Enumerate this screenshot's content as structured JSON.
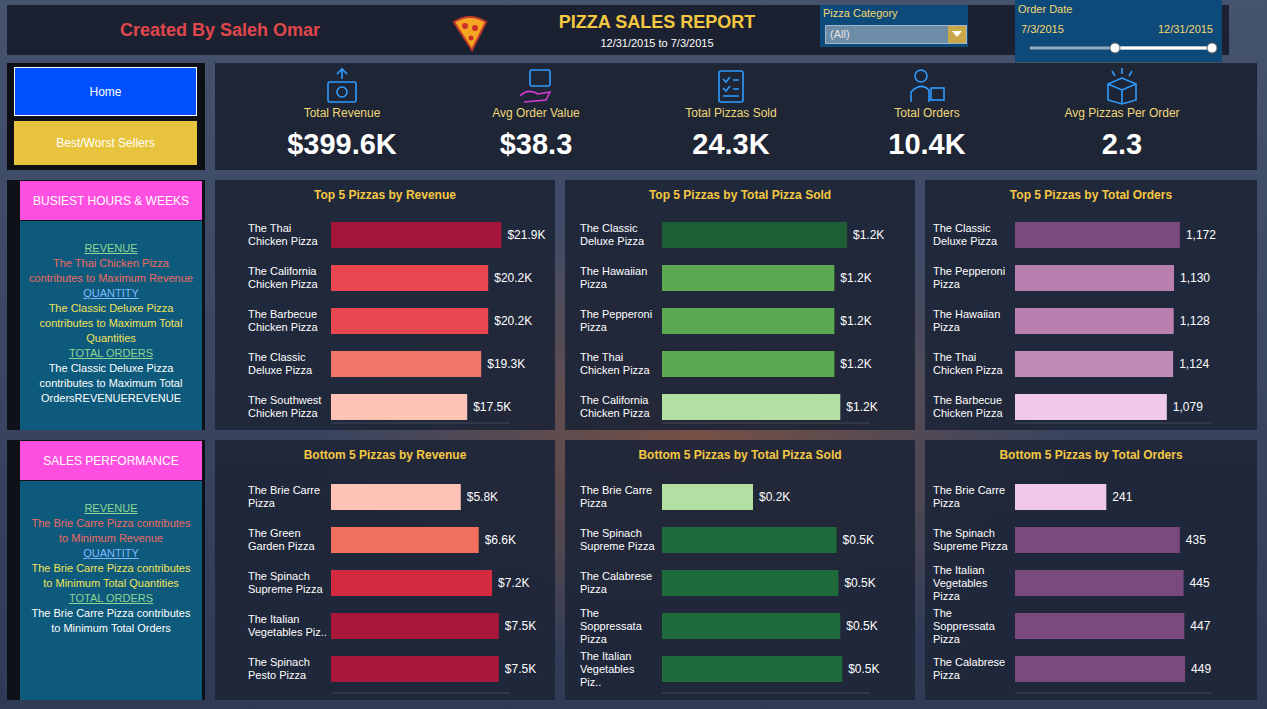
{
  "header": {
    "credit": "Created By Saleh Omar",
    "title": "PIZZA SALES REPORT",
    "subtitle": "12/31/2015 to 7/3/2015"
  },
  "filters": {
    "category": {
      "label": "Pizza Category",
      "value": "(All)"
    },
    "date": {
      "label": "Order Date",
      "start": "7/3/2015",
      "end": "12/31/2015"
    }
  },
  "nav": [
    "Home",
    "Best/Worst Sellers"
  ],
  "kpis": [
    {
      "label": "Total Revenue",
      "value": "$399.6K"
    },
    {
      "label": "Avg Order Value",
      "value": "$38.3"
    },
    {
      "label": "Total Pizzas Sold",
      "value": "24.3K"
    },
    {
      "label": "Total Orders",
      "value": "10.4K"
    },
    {
      "label": "Avg Pizzas Per Order",
      "value": "2.3"
    }
  ],
  "side_panels": [
    {
      "title": "BUSIEST HOURS & WEEKS",
      "items": [
        {
          "heading": "REVENUE",
          "text": "The Thai Chicken Pizza contributes to Maximum Revenue"
        },
        {
          "heading": "QUANTITY",
          "text": "The Classic Deluxe Pizza contributes to Maximum Total Quantities"
        },
        {
          "heading": "TOTAL ORDERS",
          "text": "The Classic Deluxe Pizza contributes to Maximum Total OrdersREVENUEREVENUE"
        }
      ]
    },
    {
      "title": "SALES PERFORMANCE",
      "items": [
        {
          "heading": "REVENUE",
          "text": "The Brie Carre Pizza contributes to Minimum Revenue"
        },
        {
          "heading": "QUANTITY",
          "text": "The Brie Carre Pizza contributes to Minimum Total Quantities"
        },
        {
          "heading": "TOTAL ORDERS",
          "text": "The Brie Carre Pizza contributes to Minimum Total Orders"
        }
      ]
    }
  ],
  "chart_data": [
    {
      "type": "bar",
      "orientation": "horizontal",
      "title": "Top 5 Pizzas by Revenue",
      "categories": [
        "The Thai Chicken Pizza",
        "The California Chicken Pizza",
        "The Barbecue Chicken Pizza",
        "The Classic Deluxe Pizza",
        "The Southwest Chicken Pizza"
      ],
      "values": [
        21900,
        20200,
        20200,
        19300,
        17500
      ],
      "value_labels": [
        "$21.9K",
        "$20.2K",
        "$20.2K",
        "$19.3K",
        "$17.5K"
      ],
      "colors": [
        "#a3163a",
        "#e8474f",
        "#e8474f",
        "#f2776a",
        "#ffc3b5"
      ],
      "xlim": [
        0,
        23000
      ],
      "data_labels": true,
      "tick_labels": false,
      "grid": false
    },
    {
      "type": "bar",
      "orientation": "horizontal",
      "title": "Top 5 Pizzas by Total Pizza Sold",
      "categories": [
        "The Classic Deluxe Pizza",
        "The Hawaiian Pizza",
        "The Pepperoni Pizza",
        "The Thai Chicken Pizza",
        "The California Chicken Pizza"
      ],
      "values": [
        1245,
        1160,
        1160,
        1160,
        1200
      ],
      "value_labels": [
        "$1.2K",
        "$1.2K",
        "$1.2K",
        "$1.2K",
        "$1.2K"
      ],
      "colors": [
        "#1d5e36",
        "#5aa850",
        "#5aa850",
        "#5aa850",
        "#b2dfa2"
      ],
      "xlim": [
        0,
        1400
      ],
      "data_labels": true,
      "tick_labels": false,
      "grid": false
    },
    {
      "type": "bar",
      "orientation": "horizontal",
      "title": "Top 5 Pizzas by Total Orders",
      "categories": [
        "The Classic Deluxe Pizza",
        "The Pepperoni Pizza",
        "The Hawaiian Pizza",
        "The Thai Chicken Pizza",
        "The Barbecue Chicken Pizza"
      ],
      "values": [
        1172,
        1130,
        1128,
        1124,
        1079
      ],
      "value_labels": [
        "1,172",
        "1,130",
        "1,128",
        "1,124",
        "1,079"
      ],
      "colors": [
        "#7a4a7c",
        "#b97fae",
        "#b97fae",
        "#c08ab7",
        "#f0c9e8"
      ],
      "xlim": [
        0,
        1400
      ],
      "data_labels": true,
      "tick_labels": false,
      "grid": false
    },
    {
      "type": "bar",
      "orientation": "horizontal",
      "title": "Bottom 5 Pizzas by Revenue",
      "categories": [
        "The Brie Carre Pizza",
        "The Green Garden Pizza",
        "The Spinach Supreme Pizza",
        "The Italian Vegetables Piz..",
        "The Spinach Pesto Pizza"
      ],
      "values": [
        5800,
        6600,
        7200,
        7500,
        7500
      ],
      "value_labels": [
        "$5.8K",
        "$6.6K",
        "$7.2K",
        "$7.5K",
        "$7.5K"
      ],
      "colors": [
        "#ffc3b5",
        "#f2705e",
        "#d42a40",
        "#a8163a",
        "#a8163a"
      ],
      "xlim": [
        0,
        8000
      ],
      "data_labels": true,
      "tick_labels": false,
      "grid": false
    },
    {
      "type": "bar",
      "orientation": "horizontal",
      "title": "Bottom 5 Pizzas by Total Pizza Sold",
      "categories": [
        "The Brie Carre Pizza",
        "The Spinach Supreme Pizza",
        "The Calabrese Pizza",
        "The Soppressata Pizza",
        "The Italian Vegetables Piz.."
      ],
      "values": [
        245,
        470,
        475,
        480,
        485
      ],
      "value_labels": [
        "$0.2K",
        "$0.5K",
        "$0.5K",
        "$0.5K",
        "$0.5K"
      ],
      "colors": [
        "#b2dfa2",
        "#1f6a3a",
        "#1f6a3a",
        "#1f6a3a",
        "#1f6a3a"
      ],
      "xlim": [
        0,
        560
      ],
      "data_labels": true,
      "tick_labels": false,
      "grid": false
    },
    {
      "type": "bar",
      "orientation": "horizontal",
      "title": "Bottom 5 Pizzas by Total Orders",
      "categories": [
        "The Brie Carre Pizza",
        "The Spinach Supreme Pizza",
        "The Italian Vegetables Pizza",
        "The Soppressata Pizza",
        "The Calabrese Pizza"
      ],
      "values": [
        241,
        435,
        445,
        447,
        449
      ],
      "colors": [
        "#f0c9e8",
        "#7a4a7c",
        "#7a4a7c",
        "#7a4a7c",
        "#7a4a7c"
      ],
      "xlim": [
        0,
        520
      ],
      "data_labels": true,
      "tick_labels": false,
      "grid": false
    }
  ]
}
